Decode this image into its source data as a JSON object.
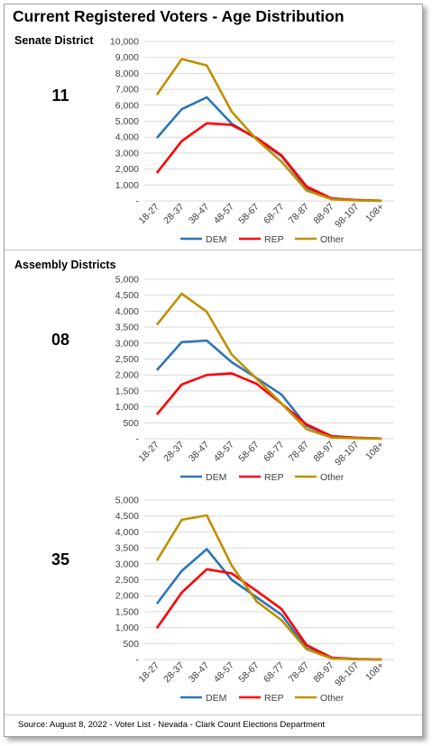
{
  "title": "Current Registered Voters - Age Distribution",
  "source": "Source: August 8, 2022 - Voter List - Nevada - Clark Count Elections Department",
  "colors": {
    "DEM": "#2e75b6",
    "REP": "#ff0000",
    "Other": "#bf9000"
  },
  "sections": [
    {
      "label": "Senate District"
    },
    {
      "label": "Assembly Districts"
    }
  ],
  "chart_data": [
    {
      "type": "line",
      "district": "11",
      "categories": [
        "18-27",
        "28-37",
        "38-47",
        "48-57",
        "58-67",
        "68-77",
        "78-87",
        "88-97",
        "98-107",
        "108+"
      ],
      "ylim": [
        0,
        10000
      ],
      "yticks": [
        "-",
        "1,000",
        "2,000",
        "3,000",
        "4,000",
        "5,000",
        "6,000",
        "7,000",
        "8,000",
        "9,000",
        "10,000"
      ],
      "grid": true,
      "legend_position": "bottom",
      "series": [
        {
          "name": "DEM",
          "values": [
            3950,
            5750,
            6500,
            4850,
            3900,
            2800,
            800,
            150,
            50,
            10
          ]
        },
        {
          "name": "REP",
          "values": [
            1750,
            3750,
            4870,
            4770,
            3950,
            2850,
            900,
            150,
            50,
            10
          ]
        },
        {
          "name": "Other",
          "values": [
            6650,
            8900,
            8500,
            5600,
            3850,
            2450,
            650,
            100,
            30,
            5
          ]
        }
      ]
    },
    {
      "type": "line",
      "district": "08",
      "categories": [
        "18-27",
        "28-37",
        "38-47",
        "48-57",
        "58-67",
        "68-77",
        "78-87",
        "88-97",
        "98-107",
        "108+"
      ],
      "ylim": [
        0,
        5000
      ],
      "yticks": [
        "-",
        "500",
        "1,000",
        "1,500",
        "2,000",
        "2,500",
        "3,000",
        "3,500",
        "4,000",
        "4,500",
        "5,000"
      ],
      "grid": true,
      "legend_position": "bottom",
      "series": [
        {
          "name": "DEM",
          "values": [
            2150,
            3030,
            3080,
            2400,
            1900,
            1380,
            400,
            80,
            30,
            5
          ]
        },
        {
          "name": "REP",
          "values": [
            760,
            1700,
            2000,
            2050,
            1720,
            1100,
            450,
            80,
            30,
            5
          ]
        },
        {
          "name": "Other",
          "values": [
            3570,
            4550,
            3980,
            2640,
            1880,
            1100,
            300,
            40,
            15,
            3
          ]
        }
      ]
    },
    {
      "type": "line",
      "district": "35",
      "categories": [
        "18-27",
        "28-37",
        "38-47",
        "48-57",
        "58-67",
        "68-77",
        "78-87",
        "88-97",
        "98-107",
        "108+"
      ],
      "ylim": [
        0,
        5000
      ],
      "yticks": [
        "-",
        "500",
        "1,000",
        "1,500",
        "2,000",
        "2,500",
        "3,000",
        "3,500",
        "4,000",
        "4,500",
        "5,000"
      ],
      "grid": true,
      "legend_position": "bottom",
      "series": [
        {
          "name": "DEM",
          "values": [
            1750,
            2780,
            3460,
            2500,
            1950,
            1400,
            350,
            50,
            10,
            2
          ]
        },
        {
          "name": "REP",
          "values": [
            980,
            2100,
            2830,
            2700,
            2150,
            1580,
            450,
            60,
            10,
            2
          ]
        },
        {
          "name": "Other",
          "values": [
            3100,
            4380,
            4520,
            2950,
            1820,
            1230,
            320,
            30,
            5,
            1
          ]
        }
      ]
    }
  ]
}
